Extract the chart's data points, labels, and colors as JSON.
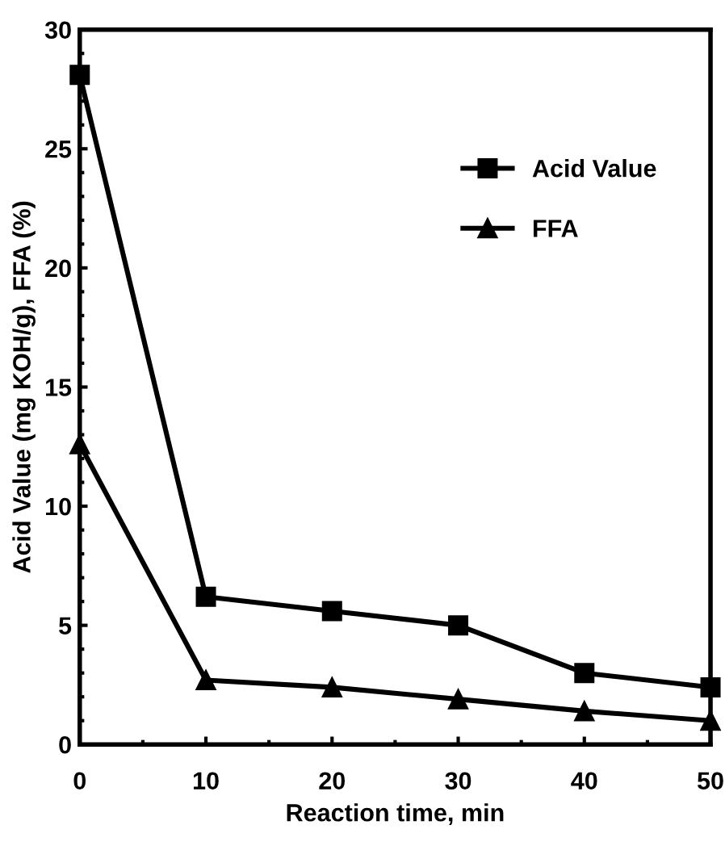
{
  "chart_data": {
    "type": "line",
    "xlabel": "Reaction time, min",
    "ylabel": "Acid Value (mg KOH/g), FFA (%)",
    "x": [
      0,
      10,
      20,
      30,
      40,
      50
    ],
    "series": [
      {
        "name": "Acid Value",
        "color": "#000000",
        "marker": "square",
        "values": [
          28.1,
          6.2,
          5.6,
          5.0,
          3.0,
          2.4
        ]
      },
      {
        "name": "FFA",
        "color": "#000000",
        "marker": "triangle",
        "values": [
          12.6,
          2.7,
          2.4,
          1.9,
          1.4,
          1.0
        ]
      }
    ],
    "xlim": [
      0,
      50
    ],
    "ylim": [
      0,
      30
    ],
    "xticks": [
      0,
      10,
      20,
      30,
      40,
      50
    ],
    "yticks": [
      0,
      5,
      10,
      15,
      20,
      25,
      30
    ],
    "grid": false,
    "legend": "top right",
    "line_style": "solid"
  }
}
